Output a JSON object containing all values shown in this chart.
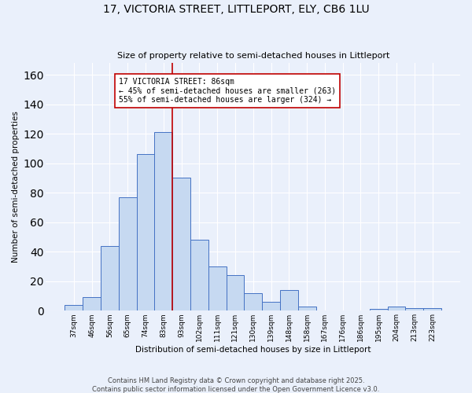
{
  "title_line1": "17, VICTORIA STREET, LITTLEPORT, ELY, CB6 1LU",
  "title_line2": "Size of property relative to semi-detached houses in Littleport",
  "xlabel": "Distribution of semi-detached houses by size in Littleport",
  "ylabel": "Number of semi-detached properties",
  "categories": [
    "37sqm",
    "46sqm",
    "56sqm",
    "65sqm",
    "74sqm",
    "83sqm",
    "93sqm",
    "102sqm",
    "111sqm",
    "121sqm",
    "130sqm",
    "139sqm",
    "148sqm",
    "158sqm",
    "167sqm",
    "176sqm",
    "186sqm",
    "195sqm",
    "204sqm",
    "213sqm",
    "223sqm"
  ],
  "values": [
    4,
    9,
    44,
    77,
    106,
    121,
    90,
    48,
    30,
    24,
    12,
    6,
    14,
    3,
    0,
    0,
    0,
    1,
    3,
    2,
    2
  ],
  "bar_color": "#c6d9f1",
  "bar_edge_color": "#4472c4",
  "vline_x_index": 5.5,
  "vline_color": "#c00000",
  "annotation_title": "17 VICTORIA STREET: 86sqm",
  "annotation_line1": "← 45% of semi-detached houses are smaller (263)",
  "annotation_line2": "55% of semi-detached houses are larger (324) →",
  "annotation_box_color": "#ffffff",
  "annotation_box_edge": "#c00000",
  "ylim": [
    0,
    168
  ],
  "yticks": [
    0,
    20,
    40,
    60,
    80,
    100,
    120,
    140,
    160
  ],
  "footer_line1": "Contains HM Land Registry data © Crown copyright and database right 2025.",
  "footer_line2": "Contains public sector information licensed under the Open Government Licence v3.0.",
  "bg_color": "#eaf0fb",
  "grid_color": "#ffffff"
}
